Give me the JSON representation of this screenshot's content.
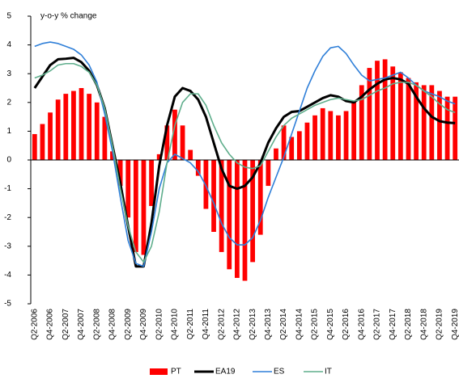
{
  "chart_data": {
    "type": "bar",
    "y_label": "y-o-y % change",
    "categories": [
      "Q2-2006",
      null,
      "Q4-2006",
      null,
      "Q2-2007",
      null,
      "Q4-2007",
      null,
      "Q2-2008",
      null,
      "Q4-2008",
      null,
      "Q2-2009",
      null,
      "Q4-2009",
      null,
      "Q2-2010",
      null,
      "Q4-2010",
      null,
      "Q2-2011",
      null,
      "Q4-2011",
      null,
      "Q2-2012",
      null,
      "Q4-2012",
      null,
      "Q2-2013",
      null,
      "Q4-2013",
      null,
      "Q2-2014",
      null,
      "Q4-2014",
      null,
      "Q2-2015",
      null,
      "Q4-2015",
      null,
      "Q2-2016",
      null,
      "Q4-2016",
      null,
      "Q2-2017",
      null,
      "Q4-2017",
      null,
      "Q2-2018",
      null,
      "Q4-2018",
      null,
      "Q2-2019",
      null,
      "Q4-2019"
    ],
    "series": [
      {
        "name": "PT",
        "type": "bar",
        "color": "#ff0000",
        "values": [
          0.9,
          1.25,
          1.65,
          2.1,
          2.3,
          2.4,
          2.5,
          2.3,
          2.0,
          1.5,
          0.3,
          -0.9,
          -2.0,
          -3.2,
          -3.3,
          -1.6,
          0.2,
          1.2,
          1.75,
          1.2,
          0.35,
          -0.55,
          -1.7,
          -2.5,
          -3.2,
          -3.8,
          -4.1,
          -4.2,
          -3.55,
          -2.6,
          -0.9,
          0.4,
          1.2,
          0.8,
          1.0,
          1.3,
          1.55,
          1.8,
          1.7,
          1.55,
          1.7,
          2.0,
          2.6,
          3.2,
          3.45,
          3.5,
          3.25,
          3.05,
          2.85,
          2.7,
          2.6,
          2.6,
          2.4,
          2.2,
          2.2
        ]
      },
      {
        "name": "EA19",
        "type": "line",
        "color": "#000000",
        "values": [
          2.5,
          2.9,
          3.3,
          3.5,
          3.52,
          3.55,
          3.4,
          3.1,
          2.6,
          1.8,
          0.5,
          -0.8,
          -2.3,
          -3.7,
          -3.7,
          -2.2,
          -0.2,
          1.2,
          2.2,
          2.5,
          2.4,
          2.1,
          1.5,
          0.6,
          -0.3,
          -0.9,
          -1.0,
          -0.9,
          -0.6,
          -0.1,
          0.6,
          1.1,
          1.5,
          1.67,
          1.7,
          1.85,
          2.0,
          2.15,
          2.25,
          2.2,
          2.05,
          2.0,
          2.2,
          2.45,
          2.65,
          2.8,
          2.85,
          2.8,
          2.65,
          2.2,
          1.8,
          1.5,
          1.35,
          1.3,
          1.28
        ]
      },
      {
        "name": "ES",
        "type": "line",
        "color": "#2f7fd8",
        "values": [
          3.95,
          4.05,
          4.1,
          4.05,
          3.95,
          3.85,
          3.65,
          3.3,
          2.7,
          1.6,
          0.3,
          -1.3,
          -2.8,
          -3.6,
          -3.7,
          -2.5,
          -1.0,
          -0.1,
          0.2,
          0.05,
          -0.1,
          -0.4,
          -0.9,
          -1.5,
          -2.2,
          -2.7,
          -2.95,
          -2.95,
          -2.7,
          -2.1,
          -1.3,
          -0.6,
          0.1,
          0.9,
          1.7,
          2.5,
          3.1,
          3.6,
          3.9,
          3.95,
          3.7,
          3.3,
          2.95,
          2.75,
          2.8,
          2.85,
          2.95,
          3.05,
          2.85,
          2.6,
          2.4,
          2.3,
          2.2,
          2.05,
          1.95
        ]
      },
      {
        "name": "IT",
        "type": "line",
        "color": "#5fae8c",
        "values": [
          2.85,
          2.95,
          3.1,
          3.3,
          3.35,
          3.35,
          3.25,
          3.05,
          2.6,
          1.8,
          0.5,
          -1.0,
          -2.3,
          -3.2,
          -3.55,
          -3.0,
          -1.8,
          -0.1,
          1.2,
          2.0,
          2.3,
          2.3,
          1.9,
          1.2,
          0.6,
          0.2,
          -0.1,
          -0.25,
          -0.3,
          -0.2,
          0.3,
          0.8,
          1.2,
          1.45,
          1.6,
          1.75,
          1.9,
          2.0,
          2.1,
          2.15,
          2.1,
          2.05,
          2.1,
          2.25,
          2.4,
          2.5,
          2.65,
          2.7,
          2.7,
          2.6,
          2.4,
          2.2,
          1.95,
          1.75,
          1.65
        ]
      }
    ],
    "ylim": [
      -5,
      5
    ],
    "yticks": [
      -5,
      -4,
      -3,
      -2,
      -1,
      0,
      1,
      2,
      3,
      4,
      5
    ],
    "grid": false,
    "legend": "bottom"
  }
}
